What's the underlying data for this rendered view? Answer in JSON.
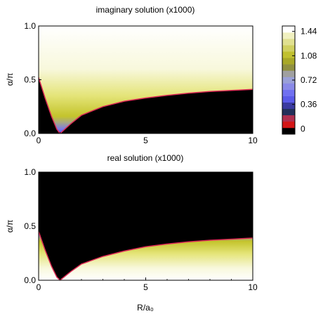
{
  "chart_data": [
    {
      "type": "heatmap",
      "title": "imaginary solution (x1000)",
      "xlabel": "",
      "ylabel": "α/π",
      "xlim": [
        0,
        10
      ],
      "ylim": [
        0.0,
        1.0
      ],
      "x_ticks": [
        "0",
        "5",
        "10"
      ],
      "y_ticks": [
        "0.0",
        "0.5",
        "1.0"
      ],
      "boundary_curve": {
        "color": "#dd2a55",
        "points": [
          [
            0,
            0.52
          ],
          [
            0.3,
            0.33
          ],
          [
            0.6,
            0.16
          ],
          [
            0.85,
            0.04
          ],
          [
            1.0,
            0.0
          ],
          [
            1.5,
            0.09
          ],
          [
            2,
            0.17
          ],
          [
            3,
            0.25
          ],
          [
            4,
            0.3
          ],
          [
            5,
            0.33
          ],
          [
            6,
            0.355
          ],
          [
            7,
            0.375
          ],
          [
            8,
            0.39
          ],
          [
            9,
            0.4
          ],
          [
            10,
            0.41
          ]
        ]
      },
      "region_above_boundary": "colored (blue to yellow to white with increasing α)",
      "region_below_boundary": "black (0)"
    },
    {
      "type": "heatmap",
      "title": "real solution (x1000)",
      "xlabel": "R/a₀",
      "ylabel": "α/π",
      "xlim": [
        0,
        10
      ],
      "ylim": [
        0.0,
        1.0
      ],
      "x_ticks": [
        "0",
        "5",
        "10"
      ],
      "y_ticks": [
        "0.0",
        "0.5",
        "1.0"
      ],
      "boundary_curve": {
        "color": "#dd2a55",
        "points": [
          [
            0,
            0.45
          ],
          [
            0.3,
            0.28
          ],
          [
            0.6,
            0.13
          ],
          [
            0.85,
            0.03
          ],
          [
            1.0,
            0.0
          ],
          [
            1.5,
            0.08
          ],
          [
            2,
            0.15
          ],
          [
            3,
            0.22
          ],
          [
            4,
            0.27
          ],
          [
            5,
            0.31
          ],
          [
            6,
            0.335
          ],
          [
            7,
            0.355
          ],
          [
            8,
            0.37
          ],
          [
            9,
            0.38
          ],
          [
            10,
            0.39
          ]
        ]
      },
      "region_above_boundary": "black (0)",
      "region_below_boundary": "colored (blue to yellow to white with decreasing α)"
    }
  ],
  "colorbar": {
    "ticks": [
      "1.44",
      "1.08",
      "0.72",
      "0.36",
      "0"
    ],
    "tick_values": [
      1.44,
      1.08,
      0.72,
      0.36,
      0
    ],
    "bins": [
      {
        "color": "#000000"
      },
      {
        "color": "#d41616"
      },
      {
        "color": "#b03050"
      },
      {
        "color": "#23305a"
      },
      {
        "color": "#3a3aa0"
      },
      {
        "color": "#5a5ae8"
      },
      {
        "color": "#7070f0"
      },
      {
        "color": "#8a8ae8"
      },
      {
        "color": "#9aa0d8"
      },
      {
        "color": "#a0a0a0"
      },
      {
        "color": "#909040"
      },
      {
        "color": "#a8a828"
      },
      {
        "color": "#c0c030"
      },
      {
        "color": "#d0d060"
      },
      {
        "color": "#e0e090"
      },
      {
        "color": "#f0f0c0"
      },
      {
        "color": "#ffffff"
      }
    ]
  }
}
